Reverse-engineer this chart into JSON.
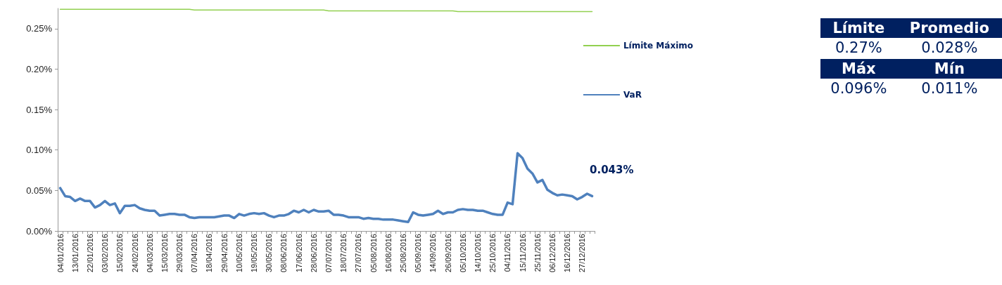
{
  "chart_data": [
    {
      "type": "line",
      "categories": [
        "04/01/2016",
        null,
        null,
        "13/01/2016",
        null,
        null,
        "22/01/2016",
        null,
        null,
        "03/02/2016",
        null,
        null,
        "15/02/2016",
        null,
        null,
        "24/02/2016",
        null,
        null,
        "04/03/2016",
        null,
        null,
        "15/03/2016",
        null,
        null,
        "29/03/2016",
        null,
        null,
        "07/04/2016",
        null,
        null,
        "18/04/2016",
        null,
        null,
        "29/04/2016",
        null,
        null,
        "10/05/2016",
        null,
        null,
        "19/05/2016",
        null,
        null,
        "30/05/2016",
        null,
        null,
        "08/06/2016",
        null,
        null,
        "17/06/2016",
        null,
        null,
        "28/06/2016",
        null,
        null,
        "07/07/2016",
        null,
        null,
        "18/07/2016",
        null,
        null,
        "27/07/2016",
        null,
        null,
        "05/08/2016",
        null,
        null,
        "16/08/2016",
        null,
        null,
        "25/08/2016",
        null,
        null,
        "05/09/2016",
        null,
        null,
        "14/09/2016",
        null,
        null,
        "26/09/2016",
        null,
        null,
        "05/10/2016",
        null,
        null,
        "14/10/2016",
        null,
        null,
        "25/10/2016",
        null,
        null,
        "04/11/2016",
        null,
        null,
        "15/11/2016",
        null,
        null,
        "25/11/2016",
        null,
        null,
        "06/12/2016",
        null,
        null,
        "16/12/2016",
        null,
        null,
        "27/12/2016",
        null,
        null
      ],
      "series": [
        {
          "name": "Límite Máximo",
          "color": "#92d050",
          "values": [
            0.274,
            0.274,
            0.274,
            0.274,
            0.274,
            0.274,
            0.274,
            0.274,
            0.274,
            0.274,
            0.274,
            0.274,
            0.274,
            0.274,
            0.274,
            0.274,
            0.274,
            0.274,
            0.274,
            0.274,
            0.274,
            0.274,
            0.274,
            0.274,
            0.274,
            0.274,
            0.274,
            0.273,
            0.273,
            0.273,
            0.273,
            0.273,
            0.273,
            0.273,
            0.273,
            0.273,
            0.273,
            0.273,
            0.273,
            0.273,
            0.273,
            0.273,
            0.273,
            0.273,
            0.273,
            0.273,
            0.273,
            0.273,
            0.273,
            0.273,
            0.273,
            0.273,
            0.273,
            0.273,
            0.272,
            0.272,
            0.272,
            0.272,
            0.272,
            0.272,
            0.272,
            0.272,
            0.272,
            0.272,
            0.272,
            0.272,
            0.272,
            0.272,
            0.272,
            0.272,
            0.272,
            0.272,
            0.272,
            0.272,
            0.272,
            0.272,
            0.272,
            0.272,
            0.272,
            0.272,
            0.271,
            0.271,
            0.271,
            0.271,
            0.271,
            0.271,
            0.271,
            0.271,
            0.271,
            0.271,
            0.271,
            0.271,
            0.271,
            0.271,
            0.271,
            0.271,
            0.271,
            0.271,
            0.271,
            0.271,
            0.271,
            0.271,
            0.271,
            0.271,
            0.271,
            0.271,
            0.271,
            0.271
          ]
        },
        {
          "name": "VaR",
          "color": "#4f81bd",
          "values": [
            0.053,
            0.043,
            0.042,
            0.037,
            0.04,
            0.037,
            0.037,
            0.029,
            0.032,
            0.037,
            0.032,
            0.034,
            0.022,
            0.031,
            0.031,
            0.032,
            0.028,
            0.026,
            0.025,
            0.025,
            0.019,
            0.02,
            0.021,
            0.021,
            0.02,
            0.02,
            0.017,
            0.016,
            0.017,
            0.017,
            0.017,
            0.017,
            0.018,
            0.019,
            0.019,
            0.016,
            0.021,
            0.019,
            0.021,
            0.022,
            0.021,
            0.022,
            0.019,
            0.017,
            0.019,
            0.019,
            0.021,
            0.025,
            0.023,
            0.026,
            0.023,
            0.026,
            0.024,
            0.024,
            0.025,
            0.02,
            0.02,
            0.019,
            0.017,
            0.017,
            0.017,
            0.015,
            0.016,
            0.015,
            0.015,
            0.014,
            0.014,
            0.014,
            0.013,
            0.012,
            0.011,
            0.023,
            0.02,
            0.019,
            0.02,
            0.021,
            0.025,
            0.021,
            0.023,
            0.023,
            0.026,
            0.027,
            0.026,
            0.026,
            0.025,
            0.025,
            0.023,
            0.021,
            0.02,
            0.02,
            0.035,
            0.033,
            0.096,
            0.09,
            0.077,
            0.071,
            0.06,
            0.063,
            0.051,
            0.047,
            0.044,
            0.045,
            0.044,
            0.043,
            0.039,
            0.042,
            0.046,
            0.043
          ]
        }
      ],
      "ylim": [
        0,
        0.275
      ],
      "yticks": [
        {
          "value": 0,
          "label": "0.00%"
        },
        {
          "value": 0.05,
          "label": "0.05%"
        },
        {
          "value": 0.1,
          "label": "0.10%"
        },
        {
          "value": 0.15,
          "label": "0.15%"
        },
        {
          "value": 0.2,
          "label": "0.20%"
        },
        {
          "value": 0.25,
          "label": "0.25%"
        }
      ],
      "grid": false,
      "legend": "right",
      "marker": "none",
      "line_style": "solid",
      "annotations": [
        "0.043%"
      ]
    },
    {
      "type": "other",
      "categories": [
        "Límite",
        "Promedio",
        "Máx",
        "Mín"
      ],
      "value_labels": [
        "0.27%",
        "0.028%",
        "0.096%",
        "0.011%"
      ]
    }
  ]
}
